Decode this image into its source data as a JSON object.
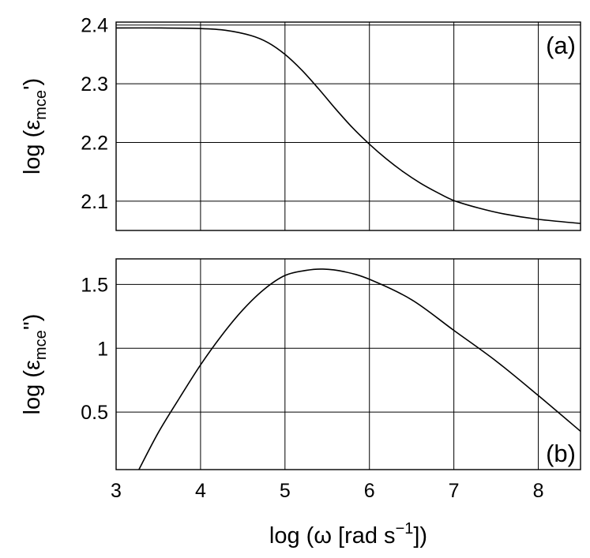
{
  "chart_data": [
    {
      "type": "line",
      "panel_label": "(a)",
      "ylabel": {
        "prefix": "log (ε",
        "subscript": "mce",
        "suffix": "')"
      },
      "xlim": [
        3,
        8.5
      ],
      "ylim": [
        2.05,
        2.405
      ],
      "xticks": [
        3,
        4,
        5,
        6,
        7,
        8
      ],
      "yticks": [
        2.1,
        2.2,
        2.3,
        2.4
      ],
      "ytick_labels": [
        "2.1",
        "2.2",
        "2.3",
        "2.4"
      ],
      "grid": true,
      "series": [
        {
          "x": [
            3.0,
            3.5,
            4.0,
            4.3,
            4.6,
            4.8,
            5.0,
            5.2,
            5.4,
            5.6,
            5.8,
            6.0,
            6.2,
            6.4,
            6.6,
            6.8,
            7.0,
            7.3,
            7.6,
            8.0,
            8.5
          ],
          "y": [
            2.395,
            2.395,
            2.394,
            2.391,
            2.382,
            2.37,
            2.35,
            2.323,
            2.291,
            2.257,
            2.225,
            2.197,
            2.172,
            2.15,
            2.131,
            2.115,
            2.101,
            2.088,
            2.078,
            2.069,
            2.062
          ]
        }
      ]
    },
    {
      "type": "line",
      "panel_label": "(b)",
      "ylabel": {
        "prefix": "log (ε",
        "subscript": "mce",
        "suffix": "'')"
      },
      "xlabel": {
        "prefix": "log (ω [rad s",
        "superscript": "−1",
        "suffix": "])"
      },
      "xlim": [
        3,
        8.5
      ],
      "ylim": [
        0.05,
        1.7
      ],
      "xticks": [
        3,
        4,
        5,
        6,
        7,
        8
      ],
      "xtick_labels": [
        "3",
        "4",
        "5",
        "6",
        "7",
        "8"
      ],
      "yticks": [
        0.5,
        1,
        1.5
      ],
      "ytick_labels": [
        "0.5",
        "1",
        "1.5"
      ],
      "grid": true,
      "series": [
        {
          "x": [
            3.27,
            3.5,
            3.75,
            4.0,
            4.25,
            4.5,
            4.75,
            5.0,
            5.25,
            5.45,
            5.7,
            6.0,
            6.5,
            7.0,
            7.5,
            8.0,
            8.5
          ],
          "y": [
            0.05,
            0.34,
            0.61,
            0.87,
            1.1,
            1.3,
            1.46,
            1.57,
            1.61,
            1.62,
            1.6,
            1.54,
            1.38,
            1.14,
            0.9,
            0.63,
            0.35
          ]
        }
      ]
    }
  ]
}
